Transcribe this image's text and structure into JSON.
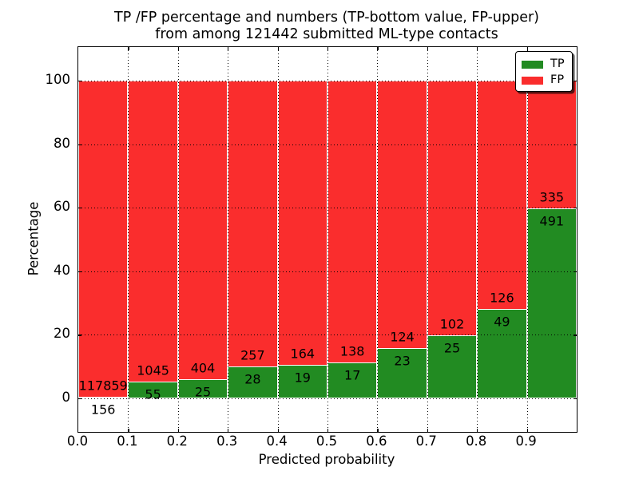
{
  "title": {
    "line1": "TP /FP percentage and numbers (TP-bottom value, FP-upper)",
    "line2": "from among 121442 submitted ML-type contacts"
  },
  "legend": {
    "position": "upper right",
    "entries": [
      {
        "label": "TP",
        "color": "#228b22"
      },
      {
        "label": "FP",
        "color": "#fa2d2d"
      }
    ]
  },
  "colors": {
    "tp": "#228b22",
    "fp": "#fa2d2d",
    "bar_edge": "#ffffff",
    "grid": "#000000",
    "background": "#ffffff",
    "text": "#000000"
  },
  "chart_data": {
    "type": "bar",
    "stacked": true,
    "normalized": "each bin scaled to 100%",
    "title": "TP /FP percentage and numbers (TP-bottom value, FP-upper) from among 121442 submitted ML-type contacts",
    "xlabel": "Predicted probability",
    "ylabel": "Percentage",
    "total_contacts": 121442,
    "bin_starts": [
      0.0,
      0.1,
      0.2,
      0.3,
      0.4,
      0.5,
      0.6,
      0.7,
      0.8,
      0.9
    ],
    "bin_width": 0.1,
    "x_tick_labels": [
      "0.0",
      "0.1",
      "0.2",
      "0.3",
      "0.4",
      "0.5",
      "0.6",
      "0.7",
      "0.8",
      "0.9"
    ],
    "y_ticks": [
      0,
      20,
      40,
      60,
      80,
      100
    ],
    "y_tick_labels": [
      "0",
      "20",
      "40",
      "60",
      "80",
      "100"
    ],
    "xlim": [
      0.0,
      1.0
    ],
    "ylim": [
      -10.55,
      110.55
    ],
    "grid": {
      "style": "dotted",
      "color": "#000000",
      "on": true
    },
    "series": [
      {
        "name": "TP",
        "color": "#228b22",
        "counts": [
          156,
          55,
          25,
          28,
          19,
          17,
          23,
          25,
          49,
          491
        ]
      },
      {
        "name": "FP",
        "color": "#fa2d2d",
        "counts": [
          117859,
          1045,
          404,
          257,
          164,
          138,
          124,
          102,
          126,
          335
        ]
      }
    ],
    "tp_percent_per_bin": [
      0.13,
      5.0,
      5.83,
      9.82,
      10.38,
      10.97,
      15.65,
      19.69,
      28.0,
      59.44
    ]
  }
}
